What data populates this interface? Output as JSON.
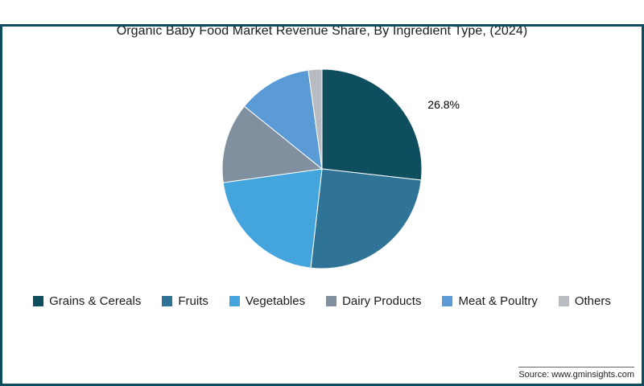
{
  "title": "Organic Baby Food Market Revenue Share, By Ingredient Type, (2024)",
  "source": "Source: www.gminsights.com",
  "colors": {
    "frame_border": "#0d4d5d",
    "background": "#ffffff",
    "title_text": "#1b1b1b",
    "data_label_text": "#000000"
  },
  "chart_data": {
    "type": "pie",
    "title": "Organic Baby Food Market Revenue Share, By Ingredient Type, (2024)",
    "unit": "%",
    "categories": [
      "Grains & Cereals",
      "Fruits",
      "Vegetables",
      "Dairy Products",
      "Meat & Poultry",
      "Others"
    ],
    "values": [
      26.8,
      25.0,
      21.0,
      13.0,
      12.0,
      2.2
    ],
    "colors": [
      "#0e4e5f",
      "#2f7396",
      "#44a4dc",
      "#80909f",
      "#5b9bd5",
      "#b8bcc0"
    ],
    "data_labels": [
      "26.8%",
      "",
      "",
      "",
      "",
      ""
    ],
    "start_angle_deg": 0,
    "direction": "clockwise",
    "legend_position": "bottom"
  }
}
